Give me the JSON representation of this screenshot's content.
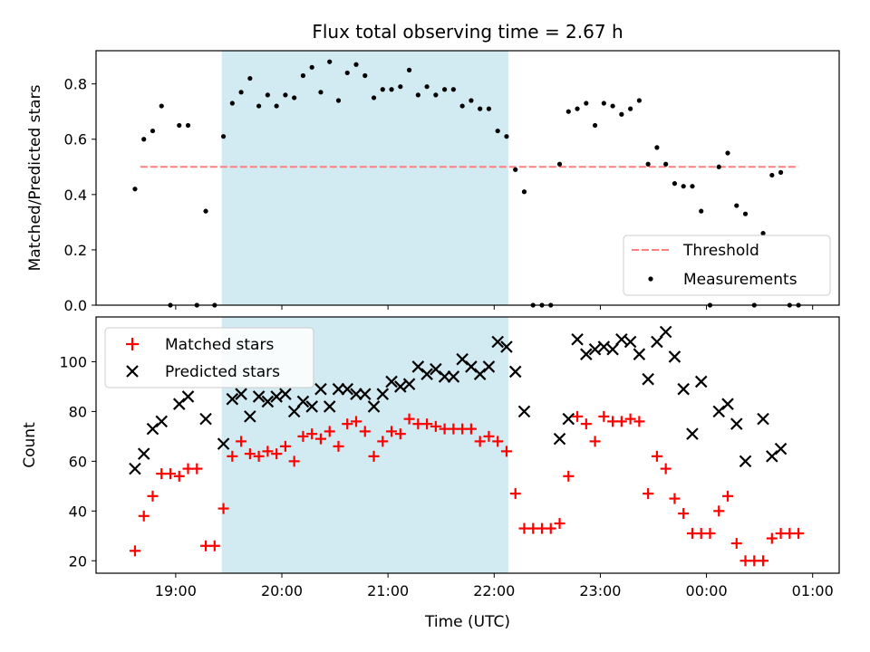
{
  "title": "Flux total observing time = 2.67 h",
  "colors": {
    "threshold": "#ff7f7f",
    "measurements": "#000000",
    "matched": "#ff0000",
    "predicted": "#000000",
    "shade": "#add8e6"
  },
  "chart_data": [
    {
      "type": "scatter",
      "panel": "top",
      "ylabel": "Matched/Predicted stars",
      "xlabel": "",
      "ylim": [
        0,
        0.92
      ],
      "y_ticks": [
        "0.0",
        "0.2",
        "0.4",
        "0.6",
        "0.8"
      ],
      "y_tick_values": [
        0,
        0.2,
        0.4,
        0.6,
        0.8
      ],
      "shaded_interval": [
        "19:26",
        "22:08"
      ],
      "legend": {
        "placement": "lower right",
        "entries": [
          "Threshold",
          "Measurements"
        ]
      },
      "threshold": {
        "name": "Threshold",
        "y": 0.5,
        "x_start": "18:40",
        "x_end": "00:52",
        "style": "dashed"
      },
      "series": [
        {
          "name": "Measurements",
          "marker": "dot",
          "points": [
            [
              "18:37",
              0.42
            ],
            [
              "18:42",
              0.6
            ],
            [
              "18:47",
              0.63
            ],
            [
              "18:52",
              0.72
            ],
            [
              "18:57",
              0.0
            ],
            [
              "19:02",
              0.65
            ],
            [
              "19:07",
              0.65
            ],
            [
              "19:12",
              0.0
            ],
            [
              "19:17",
              0.34
            ],
            [
              "19:22",
              0.0
            ],
            [
              "19:27",
              0.61
            ],
            [
              "19:32",
              0.73
            ],
            [
              "19:37",
              0.77
            ],
            [
              "19:42",
              0.82
            ],
            [
              "19:47",
              0.72
            ],
            [
              "19:52",
              0.76
            ],
            [
              "19:57",
              0.72
            ],
            [
              "20:02",
              0.76
            ],
            [
              "20:07",
              0.75
            ],
            [
              "20:12",
              0.83
            ],
            [
              "20:17",
              0.86
            ],
            [
              "20:22",
              0.77
            ],
            [
              "20:27",
              0.88
            ],
            [
              "20:32",
              0.74
            ],
            [
              "20:37",
              0.84
            ],
            [
              "20:42",
              0.87
            ],
            [
              "20:47",
              0.83
            ],
            [
              "20:52",
              0.75
            ],
            [
              "20:57",
              0.78
            ],
            [
              "21:02",
              0.78
            ],
            [
              "21:07",
              0.79
            ],
            [
              "21:12",
              0.85
            ],
            [
              "21:17",
              0.76
            ],
            [
              "21:22",
              0.79
            ],
            [
              "21:27",
              0.76
            ],
            [
              "21:32",
              0.78
            ],
            [
              "21:37",
              0.78
            ],
            [
              "21:42",
              0.72
            ],
            [
              "21:47",
              0.74
            ],
            [
              "21:52",
              0.71
            ],
            [
              "21:57",
              0.71
            ],
            [
              "22:02",
              0.63
            ],
            [
              "22:07",
              0.61
            ],
            [
              "22:12",
              0.49
            ],
            [
              "22:17",
              0.41
            ],
            [
              "22:22",
              0.0
            ],
            [
              "22:27",
              0.0
            ],
            [
              "22:32",
              0.0
            ],
            [
              "22:37",
              0.51
            ],
            [
              "22:42",
              0.7
            ],
            [
              "22:47",
              0.71
            ],
            [
              "22:52",
              0.73
            ],
            [
              "22:57",
              0.65
            ],
            [
              "23:02",
              0.73
            ],
            [
              "23:07",
              0.72
            ],
            [
              "23:12",
              0.69
            ],
            [
              "23:17",
              0.71
            ],
            [
              "23:22",
              0.74
            ],
            [
              "23:27",
              0.51
            ],
            [
              "23:32",
              0.57
            ],
            [
              "23:37",
              0.51
            ],
            [
              "23:42",
              0.44
            ],
            [
              "23:47",
              0.43
            ],
            [
              "23:52",
              0.43
            ],
            [
              "23:57",
              0.34
            ],
            [
              "00:02",
              0.0
            ],
            [
              "00:07",
              0.5
            ],
            [
              "00:12",
              0.55
            ],
            [
              "00:17",
              0.36
            ],
            [
              "00:22",
              0.33
            ],
            [
              "00:27",
              0.0
            ],
            [
              "00:32",
              0.26
            ],
            [
              "00:37",
              0.47
            ],
            [
              "00:42",
              0.48
            ],
            [
              "00:47",
              0.0
            ],
            [
              "00:52",
              0.0
            ]
          ]
        }
      ]
    },
    {
      "type": "scatter",
      "panel": "bottom",
      "xlabel": "Time (UTC)",
      "ylabel": "Count",
      "ylim": [
        15,
        118
      ],
      "y_ticks": [
        "20",
        "40",
        "60",
        "80",
        "100"
      ],
      "y_tick_values": [
        20,
        40,
        60,
        80,
        100
      ],
      "x_ticks": [
        "19:00",
        "20:00",
        "21:00",
        "22:00",
        "23:00",
        "00:00",
        "01:00"
      ],
      "x_range": [
        "18:15",
        "01:15"
      ],
      "shaded_interval": [
        "19:26",
        "22:08"
      ],
      "legend": {
        "placement": "upper left",
        "entries": [
          "Matched stars",
          "Predicted stars"
        ]
      },
      "series": [
        {
          "name": "Matched stars",
          "marker": "plus",
          "points": [
            [
              "18:37",
              24
            ],
            [
              "18:42",
              38
            ],
            [
              "18:47",
              46
            ],
            [
              "18:52",
              55
            ],
            [
              "18:57",
              55
            ],
            [
              "19:02",
              54
            ],
            [
              "19:07",
              57
            ],
            [
              "19:12",
              57
            ],
            [
              "19:17",
              26
            ],
            [
              "19:22",
              26
            ],
            [
              "19:27",
              41
            ],
            [
              "19:32",
              62
            ],
            [
              "19:37",
              68
            ],
            [
              "19:42",
              63
            ],
            [
              "19:47",
              62
            ],
            [
              "19:52",
              64
            ],
            [
              "19:57",
              63
            ],
            [
              "20:02",
              66
            ],
            [
              "20:07",
              60
            ],
            [
              "20:12",
              70
            ],
            [
              "20:17",
              71
            ],
            [
              "20:22",
              69
            ],
            [
              "20:27",
              72
            ],
            [
              "20:32",
              66
            ],
            [
              "20:37",
              75
            ],
            [
              "20:42",
              76
            ],
            [
              "20:47",
              72
            ],
            [
              "20:52",
              62
            ],
            [
              "20:57",
              68
            ],
            [
              "21:02",
              72
            ],
            [
              "21:07",
              71
            ],
            [
              "21:12",
              77
            ],
            [
              "21:17",
              75
            ],
            [
              "21:22",
              75
            ],
            [
              "21:27",
              74
            ],
            [
              "21:32",
              73
            ],
            [
              "21:37",
              73
            ],
            [
              "21:42",
              73
            ],
            [
              "21:47",
              73
            ],
            [
              "21:52",
              68
            ],
            [
              "21:57",
              70
            ],
            [
              "22:02",
              68
            ],
            [
              "22:07",
              64
            ],
            [
              "22:12",
              47
            ],
            [
              "22:17",
              33
            ],
            [
              "22:22",
              33
            ],
            [
              "22:27",
              33
            ],
            [
              "22:32",
              33
            ],
            [
              "22:37",
              35
            ],
            [
              "22:42",
              54
            ],
            [
              "22:47",
              78
            ],
            [
              "22:52",
              75
            ],
            [
              "22:57",
              68
            ],
            [
              "23:02",
              78
            ],
            [
              "23:07",
              76
            ],
            [
              "23:12",
              76
            ],
            [
              "23:17",
              77
            ],
            [
              "23:22",
              76
            ],
            [
              "23:27",
              47
            ],
            [
              "23:32",
              62
            ],
            [
              "23:37",
              57
            ],
            [
              "23:42",
              45
            ],
            [
              "23:47",
              39
            ],
            [
              "23:52",
              31
            ],
            [
              "23:57",
              31
            ],
            [
              "00:02",
              31
            ],
            [
              "00:07",
              40
            ],
            [
              "00:12",
              46
            ],
            [
              "00:17",
              27
            ],
            [
              "00:22",
              20
            ],
            [
              "00:27",
              20
            ],
            [
              "00:32",
              20
            ],
            [
              "00:37",
              29
            ],
            [
              "00:42",
              31
            ],
            [
              "00:47",
              31
            ],
            [
              "00:52",
              31
            ]
          ]
        },
        {
          "name": "Predicted stars",
          "marker": "x",
          "points": [
            [
              "18:37",
              57
            ],
            [
              "18:42",
              63
            ],
            [
              "18:47",
              73
            ],
            [
              "18:52",
              76
            ],
            [
              "19:02",
              83
            ],
            [
              "19:07",
              86
            ],
            [
              "19:17",
              77
            ],
            [
              "19:27",
              67
            ],
            [
              "19:32",
              85
            ],
            [
              "19:37",
              87
            ],
            [
              "19:42",
              78
            ],
            [
              "19:47",
              86
            ],
            [
              "19:52",
              84
            ],
            [
              "19:57",
              86
            ],
            [
              "20:02",
              87
            ],
            [
              "20:07",
              80
            ],
            [
              "20:12",
              84
            ],
            [
              "20:17",
              82
            ],
            [
              "20:22",
              89
            ],
            [
              "20:27",
              82
            ],
            [
              "20:32",
              89
            ],
            [
              "20:37",
              89
            ],
            [
              "20:42",
              87
            ],
            [
              "20:47",
              87
            ],
            [
              "20:52",
              82
            ],
            [
              "20:57",
              87
            ],
            [
              "21:02",
              92
            ],
            [
              "21:07",
              90
            ],
            [
              "21:12",
              91
            ],
            [
              "21:17",
              98
            ],
            [
              "21:22",
              95
            ],
            [
              "21:27",
              97
            ],
            [
              "21:32",
              94
            ],
            [
              "21:37",
              94
            ],
            [
              "21:42",
              101
            ],
            [
              "21:47",
              98
            ],
            [
              "21:52",
              95
            ],
            [
              "21:57",
              98
            ],
            [
              "22:02",
              108
            ],
            [
              "22:07",
              106
            ],
            [
              "22:12",
              96
            ],
            [
              "22:17",
              80
            ],
            [
              "22:37",
              69
            ],
            [
              "22:42",
              77
            ],
            [
              "22:47",
              109
            ],
            [
              "22:52",
              103
            ],
            [
              "22:57",
              105
            ],
            [
              "23:02",
              106
            ],
            [
              "23:07",
              105
            ],
            [
              "23:12",
              109
            ],
            [
              "23:17",
              108
            ],
            [
              "23:22",
              103
            ],
            [
              "23:27",
              93
            ],
            [
              "23:32",
              108
            ],
            [
              "23:37",
              112
            ],
            [
              "23:42",
              102
            ],
            [
              "23:47",
              89
            ],
            [
              "23:52",
              71
            ],
            [
              "23:57",
              92
            ],
            [
              "00:07",
              80
            ],
            [
              "00:12",
              83
            ],
            [
              "00:17",
              75
            ],
            [
              "00:22",
              60
            ],
            [
              "00:32",
              77
            ],
            [
              "00:37",
              62
            ],
            [
              "00:42",
              65
            ]
          ]
        }
      ]
    }
  ]
}
